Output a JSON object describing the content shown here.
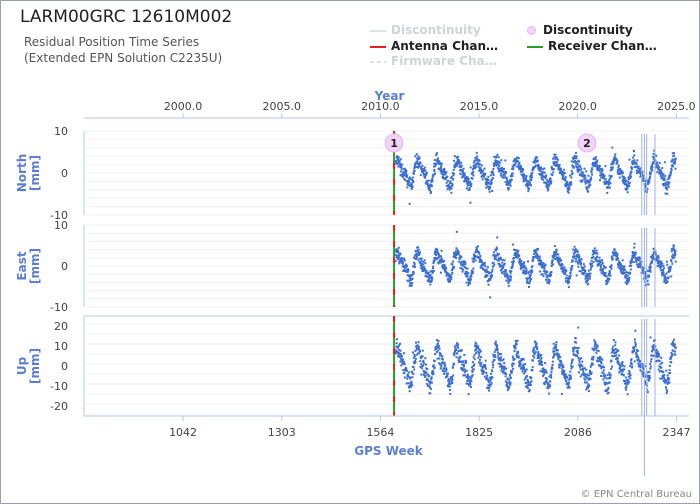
{
  "header": {
    "title": "LARM00GRC 12610M002",
    "subtitle_line1": "Residual Position Time Series",
    "subtitle_line2": "(Extended EPN Solution C2235U)"
  },
  "legend": {
    "discontinuity_line": "Discontinuity",
    "discontinuity_marker": "Discontinuity",
    "antenna_change": "Antenna Chan…",
    "receiver_change": "Receiver Chan…",
    "firmware_change": "Firmware Cha…"
  },
  "footer": {
    "copyright": "© EPN Central Bureau"
  },
  "colors": {
    "series": "#3b6fd4",
    "axis_label": "#5b7fd6",
    "antenna": "#e8201c",
    "receiver": "#2aa02a",
    "marker_fill": "#f3d4f8"
  },
  "chart_data": {
    "type": "scatter",
    "top_axis": {
      "label": "Year",
      "ticks": [
        2000.0,
        2005.0,
        2010.0,
        2015.0,
        2020.0,
        2025.0
      ],
      "tick_labels": [
        "2000.0",
        "2005.0",
        "2010.0",
        "2015.0",
        "2020.0",
        "2025.0"
      ]
    },
    "bottom_axis": {
      "label": "GPS Week",
      "range": [
        780,
        2380
      ],
      "ticks": [
        1042,
        1303,
        1564,
        1825,
        2086,
        2347
      ],
      "tick_labels": [
        "1042",
        "1303",
        "1564",
        "1825",
        "2086",
        "2347"
      ]
    },
    "data_start_week": 1600,
    "data_end_week": 2345,
    "events": {
      "antenna_change_week": 1600,
      "receiver_change_week": 1600,
      "discontinuities": [
        {
          "label": "1",
          "week": 1600
        },
        {
          "label": "2",
          "week": 2110
        }
      ]
    },
    "panels": [
      {
        "name": "North",
        "ylabel": "North\n[mm]",
        "ylim": [
          -10,
          10
        ],
        "ticks": [
          -10,
          0,
          10
        ],
        "amplitude": 2.6,
        "noise": 1.2
      },
      {
        "name": "East",
        "ylabel": "East\n[mm]",
        "ylim": [
          -10,
          10
        ],
        "ticks": [
          -10,
          0,
          10
        ],
        "amplitude": 2.8,
        "noise": 1.3
      },
      {
        "name": "Up",
        "ylabel": "Up\n[mm]",
        "ylim": [
          -25,
          25
        ],
        "ticks": [
          -20,
          -10,
          0,
          10,
          20
        ],
        "amplitude": 8,
        "noise": 3.5
      }
    ]
  }
}
